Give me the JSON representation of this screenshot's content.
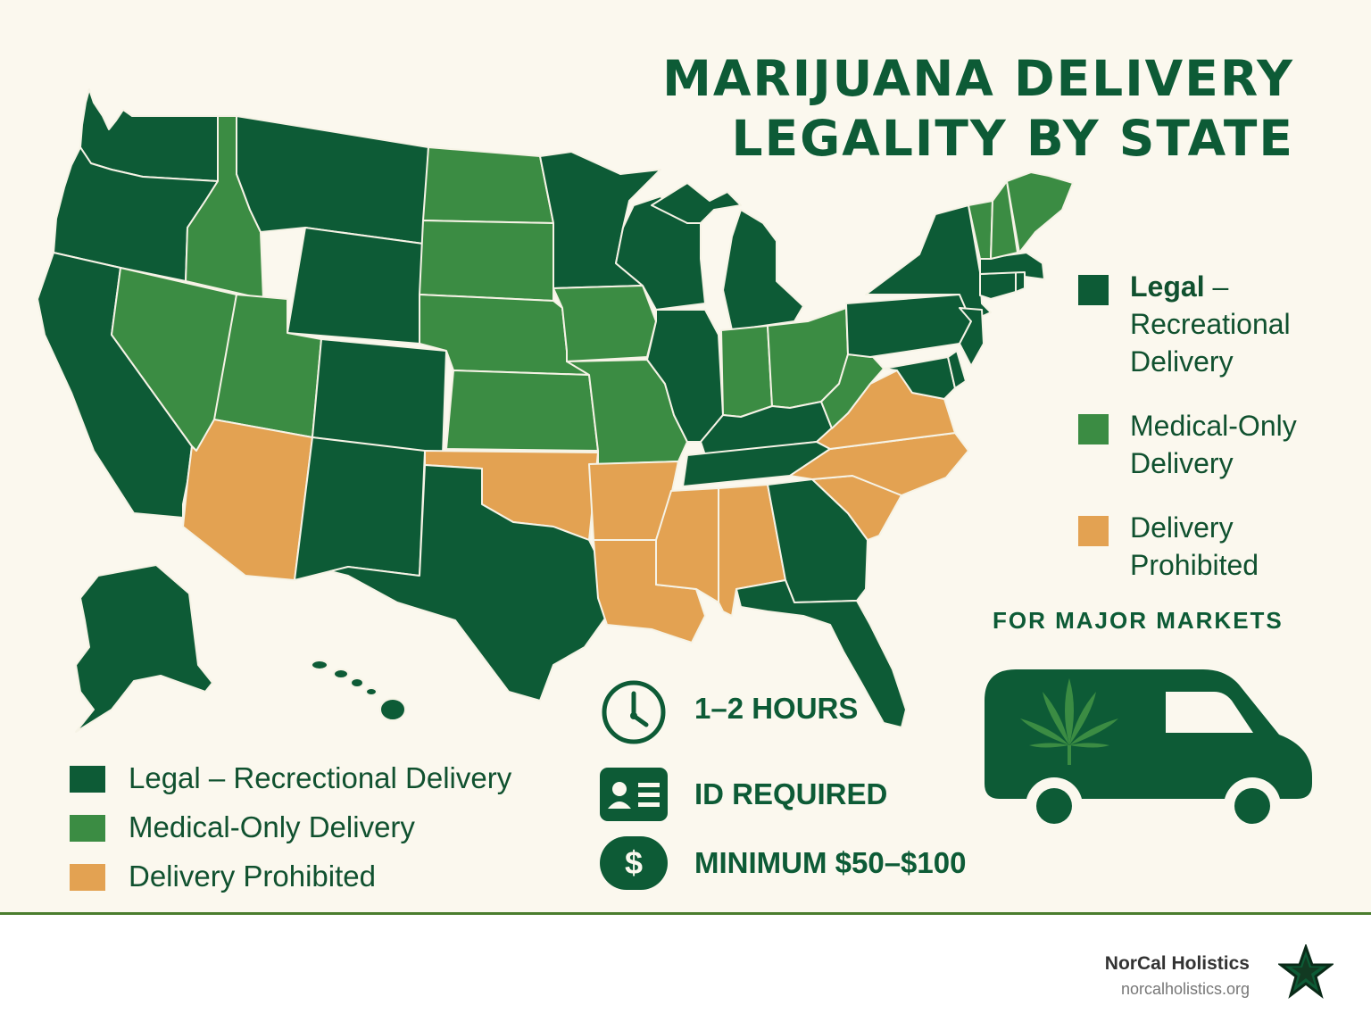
{
  "title": {
    "line1": "MARIJUANA DELIVERY",
    "line2": "LEGALITY BY STATE"
  },
  "colors": {
    "legal": "#0d5b36",
    "medical": "#3b8c43",
    "prohibited": "#e3a252",
    "background": "#fbf8ee",
    "border": "#f6f3e6"
  },
  "legend_right": [
    {
      "bold": "Legal",
      "rest": " –",
      "line2": "Recreational",
      "line3": "Delivery"
    },
    {
      "bold": "",
      "rest": "Medical-Only",
      "line2": "Delivery",
      "line3": ""
    },
    {
      "bold": "",
      "rest": "Delivery",
      "line2": "Prohibited",
      "line3": ""
    }
  ],
  "legend_bottom": [
    "Legal – Recrectional Delivery",
    "Medical-Only Delivery",
    "Delivery Prohibited"
  ],
  "info": {
    "time": "1–2 HOURS",
    "id": "ID REQUIRED",
    "minimum": "MINIMUM $50–$100",
    "dollar": "$",
    "time_icon": "clock-icon",
    "id_icon": "id-card-icon",
    "minimum_icon": "dollar-icon"
  },
  "markets": "FOR MAJOR MARKETS",
  "van_icon": "delivery-van-icon",
  "brand": {
    "name": "NorCal Holistics",
    "url": "norcalholistics.org",
    "logo_icon": "star-logo-icon"
  },
  "map_data": {
    "legal_recreational": [
      "WA",
      "OR",
      "CA",
      "MT",
      "WY",
      "CO",
      "NM",
      "TX",
      "MN",
      "WI",
      "MI",
      "IL",
      "KY",
      "TN",
      "GA",
      "FL",
      "NY",
      "PA",
      "NJ",
      "MD",
      "DE",
      "MA",
      "CT",
      "RI",
      "AK",
      "HI"
    ],
    "medical_only": [
      "ID",
      "NV",
      "UT",
      "ND",
      "SD",
      "NE",
      "KS",
      "IA",
      "MO",
      "IN",
      "OH",
      "WV",
      "VT",
      "NH",
      "ME"
    ],
    "delivery_prohibited": [
      "AZ",
      "OK",
      "AR",
      "LA",
      "MS",
      "AL",
      "SC",
      "NC",
      "VA"
    ]
  }
}
